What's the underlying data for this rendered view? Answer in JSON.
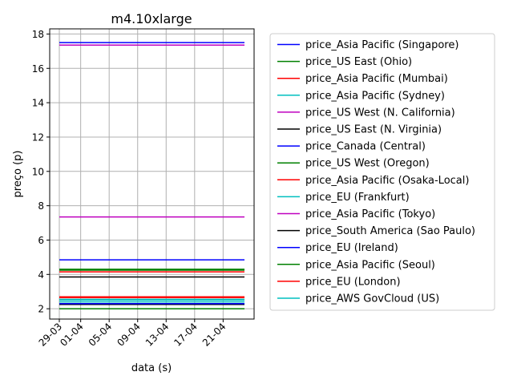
{
  "chart_data": {
    "type": "line",
    "title": "m4.10xlarge",
    "xlabel": "data (s)",
    "ylabel": "preço (p)",
    "x_range": [
      "29-03",
      "24-04"
    ],
    "x_ticks": [
      "29-03",
      "01-04",
      "05-04",
      "09-04",
      "13-04",
      "17-04",
      "21-04"
    ],
    "ylim": [
      1.4,
      18.3
    ],
    "y_ticks": [
      2,
      4,
      6,
      8,
      10,
      12,
      14,
      16,
      18
    ],
    "grid": true,
    "legend_position": "outside-right",
    "series": [
      {
        "name": "price_Asia Pacific (Singapore)",
        "color": "#0000ff",
        "x": [
          "29-03",
          "24-04"
        ],
        "values": [
          17.5,
          17.5
        ]
      },
      {
        "name": "price_US East (Ohio)",
        "color": "#008000",
        "x": [
          "29-03",
          "24-04"
        ],
        "values": [
          4.3,
          4.3
        ]
      },
      {
        "name": "price_Asia Pacific (Mumbai)",
        "color": "#ff0000",
        "x": [
          "29-03",
          "24-04"
        ],
        "values": [
          2.7,
          2.7
        ]
      },
      {
        "name": "price_Asia Pacific (Sydney)",
        "color": "#00bfbf",
        "x": [
          "29-03",
          "24-04"
        ],
        "values": [
          2.5,
          2.5
        ]
      },
      {
        "name": "price_US West (N. California)",
        "color": "#bf00bf",
        "x": [
          "29-03",
          "24-04"
        ],
        "values": [
          17.35,
          17.35
        ]
      },
      {
        "name": "price_US East (N. Virginia)",
        "color": "#000000",
        "x": [
          "29-03",
          "24-04"
        ],
        "values": [
          3.85,
          3.85
        ]
      },
      {
        "name": "price_Canada (Central)",
        "color": "#0000ff",
        "x": [
          "29-03",
          "24-04"
        ],
        "values": [
          4.85,
          4.85
        ]
      },
      {
        "name": "price_US West (Oregon)",
        "color": "#008000",
        "x": [
          "29-03",
          "24-04"
        ],
        "values": [
          2.0,
          2.0
        ]
      },
      {
        "name": "price_Asia Pacific (Osaka-Local)",
        "color": "#ff0000",
        "x": [
          "29-03",
          "24-04"
        ],
        "values": [
          4.15,
          4.15
        ]
      },
      {
        "name": "price_EU (Frankfurt)",
        "color": "#00bfbf",
        "x": [
          "29-03",
          "24-04"
        ],
        "values": [
          2.4,
          2.4
        ]
      },
      {
        "name": "price_Asia Pacific (Tokyo)",
        "color": "#bf00bf",
        "x": [
          "29-03",
          "24-04"
        ],
        "values": [
          7.35,
          7.35
        ]
      },
      {
        "name": "price_South America (Sao Paulo)",
        "color": "#000000",
        "x": [
          "29-03",
          "24-04"
        ],
        "values": [
          2.25,
          2.25
        ]
      },
      {
        "name": "price_EU (Ireland)",
        "color": "#0000ff",
        "x": [
          "29-03",
          "24-04"
        ],
        "values": [
          2.3,
          2.3
        ]
      },
      {
        "name": "price_Asia Pacific (Seoul)",
        "color": "#008000",
        "x": [
          "29-03",
          "24-04"
        ],
        "values": [
          4.25,
          4.25
        ]
      },
      {
        "name": "price_EU (London)",
        "color": "#ff0000",
        "x": [
          "29-03",
          "24-04"
        ],
        "values": [
          2.65,
          2.65
        ]
      },
      {
        "name": "price_AWS GovCloud (US)",
        "color": "#00bfbf",
        "x": [
          "29-03",
          "24-04"
        ],
        "values": [
          2.55,
          2.55
        ]
      }
    ]
  }
}
